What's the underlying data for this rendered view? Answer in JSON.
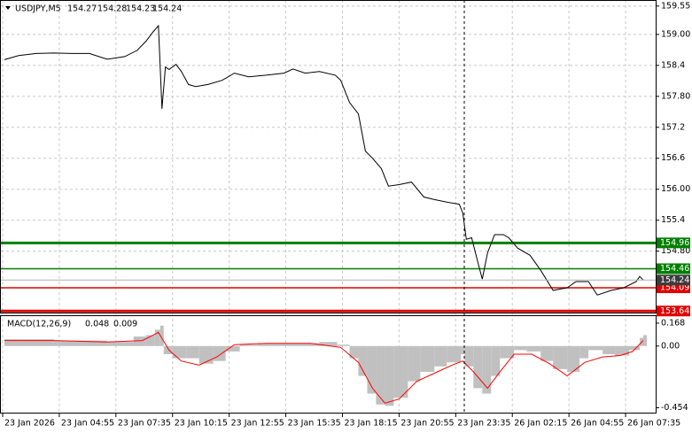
{
  "chart_data": [
    {
      "type": "line",
      "title": "USDJPY,M5",
      "quote": [
        154.27,
        154.28,
        154.23,
        154.24
      ],
      "xlim": [
        -1,
        369
      ],
      "ylim": [
        153.61,
        159.65
      ],
      "grid": true,
      "xticks": [
        {
          "value": 0,
          "label": "23 Jan 2026"
        },
        {
          "value": 32,
          "label": "23 Jan 04:55"
        },
        {
          "value": 64,
          "label": "23 Jan 07:35"
        },
        {
          "value": 96,
          "label": "23 Jan 10:15"
        },
        {
          "value": 128,
          "label": "23 Jan 12:55"
        },
        {
          "value": 160,
          "label": "23 Jan 15:35"
        },
        {
          "value": 192,
          "label": "23 Jan 18:15"
        },
        {
          "value": 224,
          "label": "23 Jan 20:55"
        },
        {
          "value": 256,
          "label": "23 Jan 23:35"
        },
        {
          "value": 288,
          "label": "26 Jan 02:15"
        },
        {
          "value": 320,
          "label": "26 Jan 04:55"
        },
        {
          "value": 352,
          "label": "26 Jan 07:35"
        }
      ],
      "yticks": [
        159.55,
        {
          "value": 159,
          "label": "159.00"
        },
        158.4,
        {
          "value": 157.8,
          "label": "157.80"
        },
        157.2,
        156.6,
        {
          "value": 156,
          "label": "156.00"
        },
        155.4,
        {
          "value": 154.8,
          "label": "154.80"
        }
      ],
      "levels": [
        {
          "value": 154.96,
          "color": "#008000",
          "width": 3
        },
        {
          "value": 154.46,
          "color": "#008000",
          "width": 1.5
        },
        {
          "value": 154.09,
          "color": "#e00000",
          "width": 1.5
        },
        {
          "value": 153.64,
          "color": "#e00000",
          "width": 3
        }
      ],
      "last": 154.24,
      "series": [
        {
          "color": "#000000",
          "x": [
            1,
            9,
            19,
            29,
            39,
            49,
            59,
            69,
            76,
            81,
            85,
            88,
            90,
            92,
            94,
            98,
            101,
            105,
            109,
            116,
            124,
            131,
            139,
            149,
            159,
            164,
            171,
            179,
            188,
            191,
            196,
            201,
            205,
            209,
            214,
            218,
            224,
            231,
            238,
            244,
            251,
            258,
            260,
            262,
            265,
            269,
            271,
            274,
            278,
            283,
            286,
            291,
            298,
            304,
            311,
            319,
            324,
            331,
            336,
            344,
            351,
            358,
            360,
            362
          ],
          "values": [
            158.51,
            158.59,
            158.63,
            158.64,
            158.63,
            158.63,
            158.52,
            158.57,
            158.69,
            158.87,
            159.05,
            159.17,
            157.56,
            158.37,
            158.32,
            158.42,
            158.28,
            158.03,
            157.99,
            158.03,
            158.11,
            158.25,
            158.18,
            158.21,
            158.25,
            158.33,
            158.25,
            158.28,
            158.21,
            158.11,
            157.68,
            157.46,
            156.74,
            156.6,
            156.4,
            156.06,
            156.09,
            156.14,
            155.85,
            155.8,
            155.75,
            155.71,
            155.54,
            155.03,
            155.06,
            154.52,
            154.26,
            154.77,
            155.12,
            155.12,
            155.06,
            154.86,
            154.72,
            154.43,
            154.04,
            154.09,
            154.21,
            154.21,
            153.95,
            154.04,
            154.09,
            154.21,
            154.31,
            154.24
          ]
        }
      ]
    },
    {
      "type": "macd",
      "title": "MACD(12,26,9)",
      "readout": [
        0.048,
        0.009
      ],
      "xlim": [
        -1,
        369
      ],
      "ylim": [
        -0.49,
        0.22
      ],
      "yticks": [
        0.168,
        {
          "value": 0,
          "label": "0.00"
        },
        -0.454
      ],
      "series": [
        {
          "kind": "bar",
          "color": "#c0c0c0",
          "x": [
            1,
            14,
            29,
            44,
            59,
            74,
            81,
            86,
            89,
            91,
            96,
            104,
            111,
            119,
            126,
            134,
            144,
            154,
            164,
            179,
            189,
            196,
            201,
            206,
            211,
            216,
            221,
            229,
            236,
            244,
            251,
            259,
            261,
            266,
            271,
            276,
            281,
            289,
            296,
            304,
            311,
            319,
            326,
            331,
            339,
            346,
            354,
            360,
            362
          ],
          "values": [
            0.05,
            0.05,
            0.04,
            0.04,
            0.03,
            0.07,
            0.08,
            0.12,
            0.15,
            -0.06,
            -0.09,
            -0.09,
            -0.13,
            -0.11,
            -0.04,
            0.01,
            0.02,
            0.02,
            0.02,
            0.03,
            0.01,
            -0.09,
            -0.22,
            -0.35,
            -0.43,
            -0.44,
            -0.38,
            -0.26,
            -0.19,
            -0.15,
            -0.12,
            -0.06,
            -0.15,
            -0.31,
            -0.35,
            -0.22,
            -0.09,
            -0.03,
            -0.04,
            -0.11,
            -0.17,
            -0.19,
            -0.09,
            -0.03,
            -0.06,
            -0.07,
            -0.03,
            0.06,
            0.08
          ]
        },
        {
          "kind": "line",
          "color": "#ff0000",
          "x": [
            1,
            29,
            59,
            79,
            88,
            94,
            101,
            111,
            121,
            131,
            149,
            174,
            191,
            201,
            209,
            216,
            224,
            234,
            244,
            254,
            260,
            266,
            274,
            281,
            289,
            299,
            309,
            319,
            329,
            339,
            349,
            356,
            362
          ],
          "values": [
            0.04,
            0.04,
            0.03,
            0.04,
            0.1,
            -0.03,
            -0.11,
            -0.14,
            -0.08,
            0.01,
            0.02,
            0.02,
            -0.01,
            -0.12,
            -0.31,
            -0.42,
            -0.39,
            -0.26,
            -0.2,
            -0.14,
            -0.11,
            -0.19,
            -0.31,
            -0.19,
            -0.06,
            -0.06,
            -0.13,
            -0.22,
            -0.12,
            -0.08,
            -0.07,
            -0.04,
            0.04
          ]
        }
      ]
    }
  ]
}
